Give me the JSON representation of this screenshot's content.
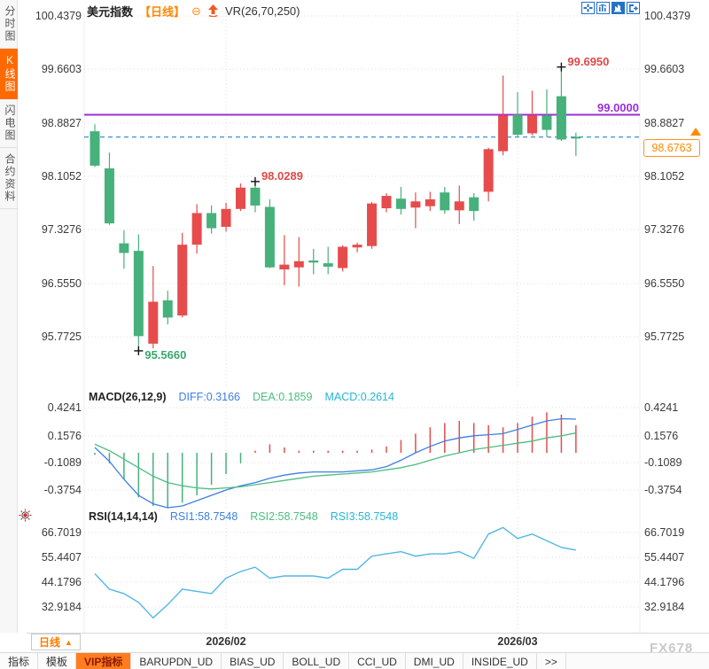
{
  "header": {
    "symbol": "美元指数",
    "period": "【日线】",
    "minus_icon": "⊖",
    "overlay": "VR(26,70,250)"
  },
  "sidebar": {
    "tabs": [
      {
        "label": "分时图",
        "active": false
      },
      {
        "label": "K线图",
        "active": true
      },
      {
        "label": "闪电图",
        "active": false
      },
      {
        "label": "合约资料",
        "active": false
      }
    ]
  },
  "top_icons": [
    {
      "name": "crosshair-icon"
    },
    {
      "name": "indicator-window-icon"
    },
    {
      "name": "chart-style-icon"
    },
    {
      "name": "exit-icon"
    }
  ],
  "price_label": "98.6763",
  "xaxis": {
    "period_button": "日线",
    "dropdown_icon": "▲",
    "dates": [
      "2026/02",
      "2026/03"
    ]
  },
  "toolbar": {
    "items": [
      {
        "label": "指标",
        "active": false
      },
      {
        "label": "模板",
        "active": false
      },
      {
        "label": "VIP指标",
        "active": true
      },
      {
        "label": "BARUPDN_UD",
        "active": false
      },
      {
        "label": "BIAS_UD",
        "active": false
      },
      {
        "label": "BOLL_UD",
        "active": false
      },
      {
        "label": "CCI_UD",
        "active": false
      },
      {
        "label": "DMI_UD",
        "active": false
      },
      {
        "label": "INSIDE_UD",
        "active": false
      },
      {
        "label": ">>",
        "active": false
      }
    ]
  },
  "watermark": "FX678",
  "colors": {
    "up": "#e64c4c",
    "down": "#46b17b",
    "purple_line": "#9b2fd6",
    "dashed_line": "#3f8fd6",
    "diff": "#3d7fe0",
    "dea": "#4bbd7f",
    "macd": "#27b6d6",
    "rsi_line": "#52b7e6",
    "anno_red": "#e04848",
    "anno_green": "#3aa76d",
    "accent_orange": "#ff6a00"
  },
  "chart_data": [
    {
      "type": "candlestick",
      "title": "美元指数 日线",
      "y_ticks": [
        "100.4379",
        "99.6603",
        "98.8827",
        "98.1052",
        "97.3276",
        "96.5550",
        "95.7725"
      ],
      "ylim": [
        95.04,
        100.4379
      ],
      "x_dates": [
        "2026/02",
        "2026/03"
      ],
      "candles_ohlc": [
        [
          98.76,
          98.86,
          98.24,
          98.26
        ],
        [
          98.22,
          98.45,
          97.4,
          97.42
        ],
        [
          97.13,
          97.32,
          96.76,
          96.99
        ],
        [
          97.02,
          97.26,
          95.566,
          95.78
        ],
        [
          95.67,
          96.8,
          95.6,
          96.28
        ],
        [
          96.3,
          96.44,
          95.95,
          96.05
        ],
        [
          96.08,
          97.28,
          96.05,
          97.11
        ],
        [
          97.11,
          97.7,
          96.98,
          97.57
        ],
        [
          97.57,
          97.68,
          97.27,
          97.35
        ],
        [
          97.37,
          97.72,
          97.3,
          97.63
        ],
        [
          97.63,
          98.0,
          97.6,
          97.94
        ],
        [
          97.94,
          98.0289,
          97.58,
          97.68
        ],
        [
          97.66,
          97.77,
          96.77,
          96.78
        ],
        [
          96.75,
          97.25,
          96.52,
          96.82
        ],
        [
          96.78,
          97.22,
          96.5,
          96.87
        ],
        [
          96.88,
          97.05,
          96.68,
          96.85
        ],
        [
          96.84,
          97.08,
          96.68,
          96.79
        ],
        [
          96.77,
          97.1,
          96.72,
          97.08
        ],
        [
          97.07,
          97.14,
          97.0,
          97.11
        ],
        [
          97.09,
          97.73,
          97.05,
          97.71
        ],
        [
          97.64,
          97.86,
          97.58,
          97.82
        ],
        [
          97.78,
          97.95,
          97.55,
          97.63
        ],
        [
          97.65,
          97.87,
          97.35,
          97.74
        ],
        [
          97.67,
          97.88,
          97.6,
          97.77
        ],
        [
          97.87,
          97.95,
          97.56,
          97.61
        ],
        [
          97.61,
          97.97,
          97.41,
          97.74
        ],
        [
          97.8,
          97.86,
          97.46,
          97.6
        ],
        [
          97.88,
          98.52,
          97.74,
          98.5
        ],
        [
          98.47,
          99.57,
          98.41,
          98.99
        ],
        [
          99.0,
          99.33,
          98.67,
          98.71
        ],
        [
          98.73,
          99.35,
          98.7,
          98.99
        ],
        [
          98.99,
          99.37,
          98.68,
          98.78
        ],
        [
          99.27,
          99.695,
          98.62,
          98.64
        ],
        [
          98.68,
          98.74,
          98.4,
          98.6763
        ]
      ],
      "annotations": [
        {
          "text": "99.6950",
          "candle": 32,
          "at": "high",
          "color": "#e04848"
        },
        {
          "text": "98.0289",
          "candle": 11,
          "at": "high",
          "color": "#e04848"
        },
        {
          "text": "95.5660",
          "candle": 3,
          "at": "low",
          "color": "#3aa76d"
        }
      ],
      "hlines": [
        {
          "value": 99.0,
          "label": "99.0000",
          "color": "#9b2fd6",
          "dash": false
        },
        {
          "value": 98.6763,
          "label": "98.6763",
          "color": "#3f8fd6",
          "dash": true
        }
      ]
    },
    {
      "type": "macd",
      "title": "MACD(26,12,9)",
      "legend": [
        {
          "label": "DIFF:0.3166",
          "color": "#3d7fe0"
        },
        {
          "label": "DEA:0.1859",
          "color": "#4bbd7f"
        },
        {
          "label": "MACD:0.2614",
          "color": "#27b6d6"
        }
      ],
      "y_ticks": [
        "0.4241",
        "0.1576",
        "-0.1089",
        "-0.3754"
      ],
      "hist": [
        -0.02,
        -0.1,
        -0.25,
        -0.42,
        -0.5,
        -0.52,
        -0.47,
        -0.4,
        -0.3,
        -0.2,
        -0.1,
        0.02,
        0.08,
        0.05,
        0.02,
        0.02,
        0.02,
        0.02,
        0.02,
        0.03,
        0.06,
        0.12,
        0.18,
        0.24,
        0.28,
        0.3,
        0.28,
        0.26,
        0.24,
        0.28,
        0.34,
        0.38,
        0.36,
        0.26
      ],
      "diff": [
        0.05,
        -0.08,
        -0.25,
        -0.4,
        -0.48,
        -0.52,
        -0.5,
        -0.45,
        -0.4,
        -0.35,
        -0.31,
        -0.28,
        -0.24,
        -0.21,
        -0.19,
        -0.18,
        -0.18,
        -0.18,
        -0.17,
        -0.16,
        -0.13,
        -0.07,
        0.0,
        0.06,
        0.11,
        0.14,
        0.16,
        0.17,
        0.18,
        0.22,
        0.26,
        0.3,
        0.32,
        0.3166
      ],
      "dea": [
        0.08,
        0.02,
        -0.06,
        -0.14,
        -0.22,
        -0.28,
        -0.31,
        -0.33,
        -0.34,
        -0.33,
        -0.32,
        -0.3,
        -0.28,
        -0.26,
        -0.24,
        -0.22,
        -0.21,
        -0.2,
        -0.19,
        -0.18,
        -0.16,
        -0.14,
        -0.11,
        -0.07,
        -0.03,
        0.0,
        0.03,
        0.05,
        0.07,
        0.09,
        0.11,
        0.14,
        0.16,
        0.1859
      ]
    },
    {
      "type": "rsi",
      "title": "RSI(14,14,14)",
      "legend": [
        {
          "label": "RSI1:58.7548",
          "color": "#3d7fe0"
        },
        {
          "label": "RSI2:58.7548",
          "color": "#4bbd7f"
        },
        {
          "label": "RSI3:58.7548",
          "color": "#27b6d6"
        }
      ],
      "y_ticks": [
        "66.7019",
        "55.4407",
        "44.1796",
        "32.9184"
      ],
      "values": [
        48,
        41,
        39,
        35,
        28,
        34,
        41,
        40,
        39,
        46,
        49,
        51,
        46,
        47,
        47,
        47,
        46,
        50,
        50,
        56,
        57,
        58,
        56,
        57,
        57,
        58,
        55,
        66,
        69,
        64,
        66,
        63,
        60,
        58.75
      ]
    }
  ]
}
